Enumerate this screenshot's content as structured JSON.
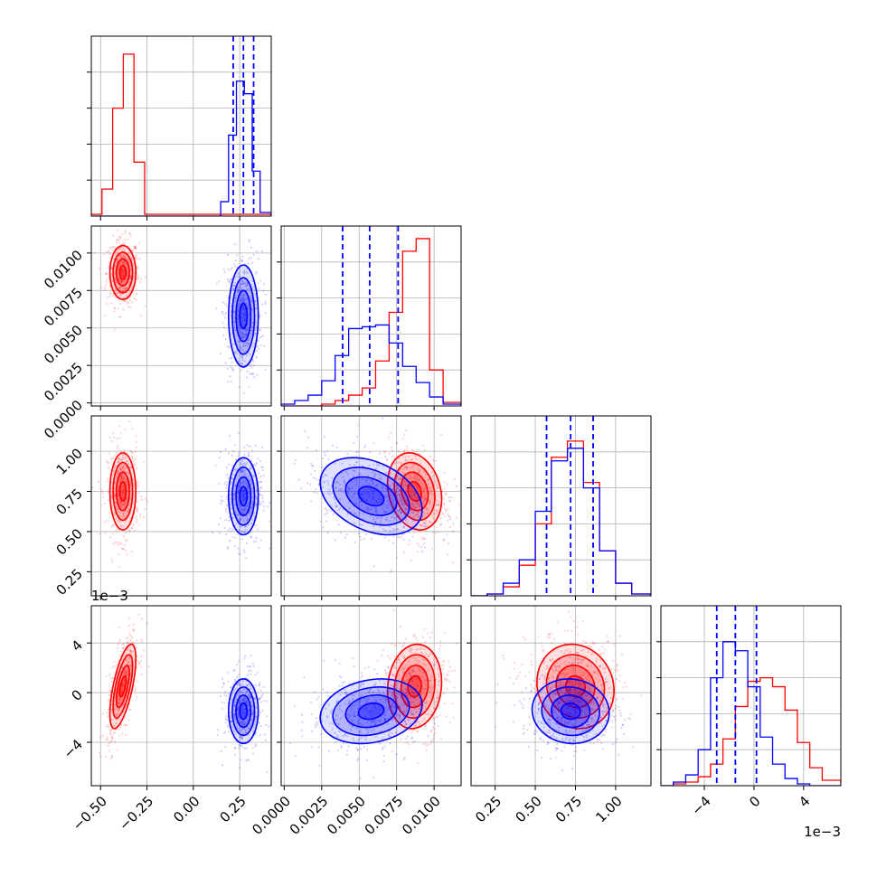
{
  "colors": {
    "series_a": "#ff0000",
    "series_b": "#0000ff",
    "grid": "#b0b0b0",
    "axes": "#000000"
  },
  "chart_data": {
    "type": "corner",
    "grid": true,
    "parameters": [
      {
        "range": [
          -0.55,
          0.42
        ],
        "ticks": [
          -0.5,
          -0.25,
          0.0,
          0.25
        ],
        "tick_labels": [
          "−0.50",
          "−0.25",
          "0.00",
          "0.25"
        ],
        "offset_text": ""
      },
      {
        "range": [
          -0.0002,
          0.0118
        ],
        "ticks": [
          0.0,
          0.0025,
          0.005,
          0.0075,
          0.01
        ],
        "tick_labels": [
          "0.0000",
          "0.0025",
          "0.0050",
          "0.0075",
          "0.0100"
        ],
        "offset_text": ""
      },
      {
        "range": [
          0.1,
          1.22
        ],
        "ticks": [
          0.25,
          0.5,
          0.75,
          1.0
        ],
        "tick_labels": [
          "0.25",
          "0.50",
          "0.75",
          "1.00"
        ],
        "offset_text": ""
      },
      {
        "range": [
          -7.5,
          7.0
        ],
        "ticks": [
          -4,
          0,
          4
        ],
        "tick_labels": [
          "−4",
          "0",
          "4"
        ],
        "offset_text": "1e−3"
      }
    ],
    "series": [
      {
        "color": "#ff0000",
        "means": [
          -0.38,
          0.0087,
          0.75,
          0.5
        ],
        "sds": [
          0.035,
          0.0009,
          0.12,
          1.7
        ],
        "correlations": {
          "0-3": 0.65,
          "1-2": -0.2,
          "1-3": 0.1,
          "2-3": -0.1
        },
        "histograms": [
          {
            "edges": [
              -0.55,
              -0.4925,
              -0.435,
              -0.3775,
              -0.32,
              -0.2625,
              0.42
            ],
            "counts": [
              0.01,
              0.15,
              0.6,
              0.9,
              0.3,
              0.01
            ]
          },
          {
            "edges": [
              -0.0002,
              0.0007,
              0.0016,
              0.0025,
              0.0034,
              0.0043,
              0.0052,
              0.0061,
              0.007,
              0.0079,
              0.0088,
              0.0097,
              0.0106,
              0.0118
            ],
            "counts": [
              0.0,
              0.0,
              0.0,
              0.01,
              0.03,
              0.06,
              0.1,
              0.25,
              0.52,
              0.86,
              0.93,
              0.2,
              0.02
            ]
          },
          {
            "edges": [
              0.1,
              0.2,
              0.3,
              0.4,
              0.5,
              0.6,
              0.7,
              0.8,
              0.9,
              1.0,
              1.1,
              1.22
            ],
            "counts": [
              0.0,
              0.01,
              0.05,
              0.17,
              0.4,
              0.77,
              0.86,
              0.63,
              0.25,
              0.07,
              0.01
            ]
          },
          {
            "edges": [
              -7.5,
              -6.5,
              -5.5,
              -4.5,
              -3.5,
              -2.5,
              -1.5,
              -0.5,
              0.5,
              1.5,
              2.5,
              3.5,
              4.5,
              5.5,
              7.0
            ],
            "counts": [
              0.0,
              0.01,
              0.02,
              0.05,
              0.12,
              0.26,
              0.44,
              0.58,
              0.6,
              0.55,
              0.42,
              0.24,
              0.1,
              0.03
            ]
          }
        ]
      },
      {
        "color": "#0000ff",
        "means": [
          0.27,
          0.0058,
          0.72,
          -1.5
        ],
        "sds": [
          0.04,
          0.0017,
          0.12,
          1.3
        ],
        "correlations": {
          "0-3": 0.0,
          "1-2": -0.35,
          "1-3": 0.2,
          "2-3": -0.05
        },
        "quantiles": [
          [
            0.215,
            0.27,
            0.325
          ],
          [
            0.0039,
            0.0057,
            0.0076
          ],
          [
            0.57,
            0.72,
            0.86
          ],
          [
            -3.0,
            -1.5,
            0.2
          ]
        ],
        "histograms": [
          {
            "edges": [
              -0.55,
              0.1475,
              0.19,
              0.2325,
              0.275,
              0.3175,
              0.36,
              0.42
            ],
            "counts": [
              0.0,
              0.08,
              0.45,
              0.75,
              0.68,
              0.25,
              0.02
            ]
          },
          {
            "edges": [
              -0.0002,
              0.0007,
              0.0016,
              0.0025,
              0.0034,
              0.0043,
              0.0052,
              0.0061,
              0.007,
              0.0079,
              0.0088,
              0.0097,
              0.0106,
              0.0118
            ],
            "counts": [
              0.01,
              0.03,
              0.06,
              0.14,
              0.28,
              0.43,
              0.44,
              0.45,
              0.35,
              0.22,
              0.13,
              0.05,
              0.01
            ]
          },
          {
            "edges": [
              0.1,
              0.2,
              0.3,
              0.4,
              0.5,
              0.6,
              0.7,
              0.8,
              0.9,
              1.0,
              1.1,
              1.22
            ],
            "counts": [
              0.0,
              0.01,
              0.07,
              0.2,
              0.47,
              0.75,
              0.82,
              0.6,
              0.25,
              0.07,
              0.01
            ]
          },
          {
            "edges": [
              -7.5,
              -6.5,
              -5.5,
              -4.5,
              -3.5,
              -2.5,
              -1.5,
              -0.5,
              0.5,
              1.5,
              2.5,
              3.5,
              4.5,
              5.5,
              7.0
            ],
            "counts": [
              0.0,
              0.02,
              0.06,
              0.2,
              0.6,
              0.8,
              0.75,
              0.55,
              0.27,
              0.12,
              0.04,
              0.01,
              0.0,
              0.0
            ]
          }
        ]
      }
    ],
    "contour_levels_sigma": [
      0.5,
      1.0,
      1.5,
      2.0
    ]
  }
}
